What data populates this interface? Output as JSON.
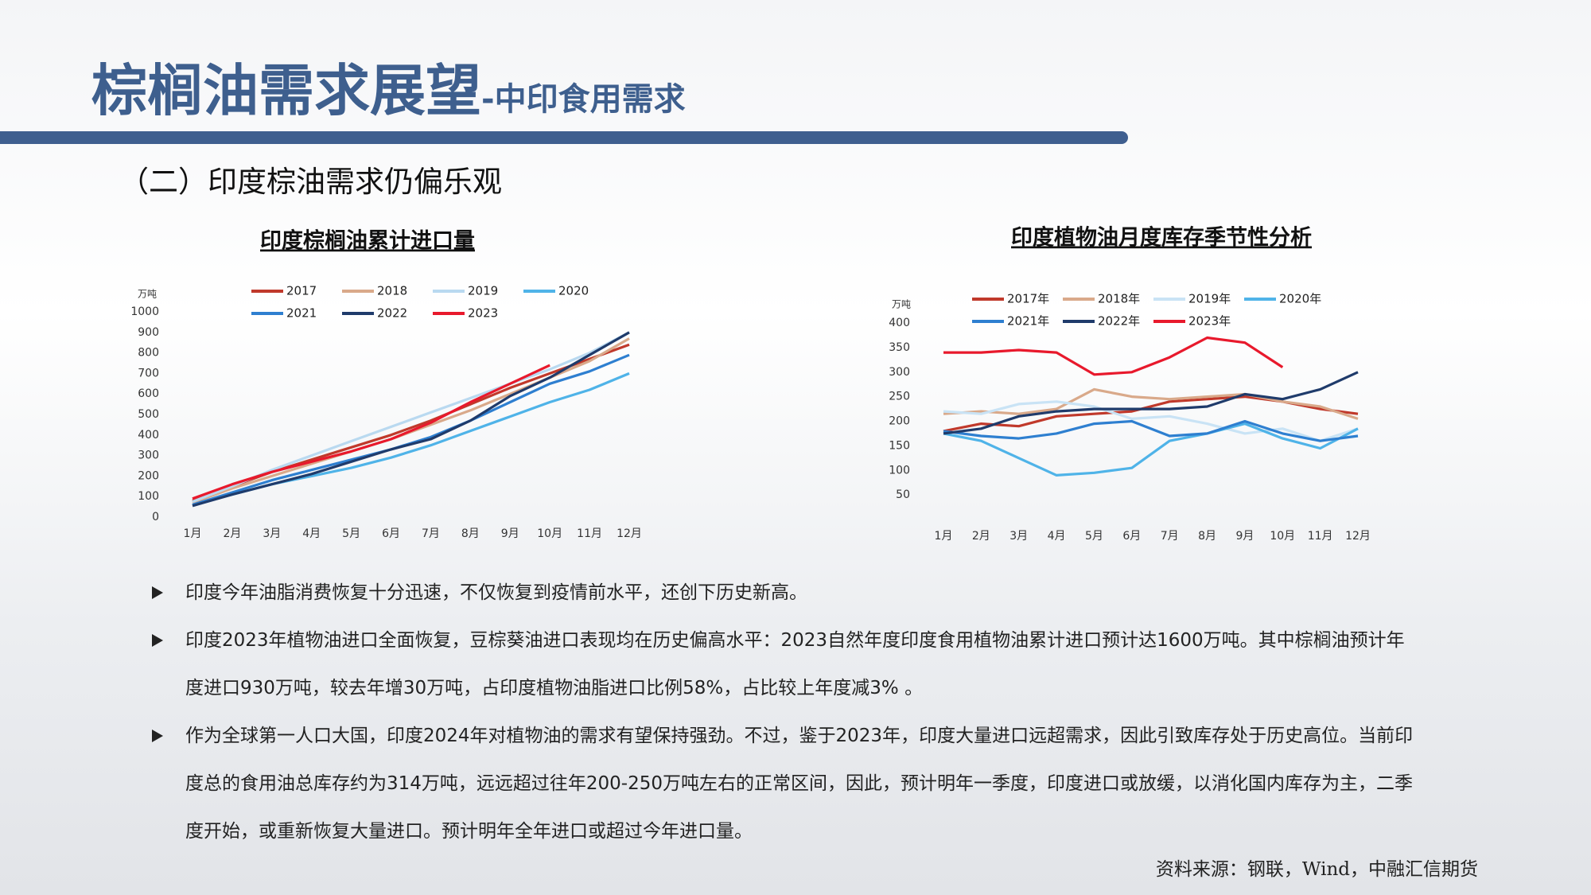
{
  "header": {
    "title": "棕榈油需求展望",
    "subtitle": "-中印食用需求"
  },
  "section": "（二）印度棕油需求仍偏乐观",
  "chart_data": [
    {
      "type": "line",
      "title": "印度棕榈油累计进口量",
      "y_label": "万吨",
      "categories": [
        "1月",
        "2月",
        "3月",
        "4月",
        "5月",
        "6月",
        "7月",
        "8月",
        "9月",
        "10月",
        "11月",
        "12月"
      ],
      "ylim": [
        0,
        1000
      ],
      "yticks": [
        0,
        100,
        200,
        300,
        400,
        500,
        600,
        700,
        800,
        900,
        1000
      ],
      "grid": false,
      "series": [
        {
          "name": "2017",
          "color": "#c0392b",
          "values": [
            80,
            150,
            220,
            280,
            340,
            400,
            470,
            550,
            630,
            700,
            770,
            840
          ]
        },
        {
          "name": "2018",
          "color": "#d9a98a",
          "values": [
            70,
            140,
            200,
            260,
            320,
            380,
            450,
            520,
            600,
            680,
            760,
            870
          ]
        },
        {
          "name": "2019",
          "color": "#b9d9f0",
          "values": [
            75,
            150,
            230,
            300,
            370,
            440,
            510,
            580,
            650,
            720,
            800,
            900
          ]
        },
        {
          "name": "2020",
          "color": "#4fb3e8",
          "values": [
            60,
            110,
            160,
            200,
            240,
            290,
            350,
            420,
            490,
            560,
            620,
            700
          ]
        },
        {
          "name": "2021",
          "color": "#2e7fd0",
          "values": [
            60,
            120,
            180,
            230,
            280,
            330,
            390,
            470,
            560,
            650,
            710,
            790
          ]
        },
        {
          "name": "2022",
          "color": "#1f3b6b",
          "values": [
            55,
            110,
            160,
            210,
            270,
            330,
            380,
            470,
            590,
            680,
            790,
            900
          ]
        },
        {
          "name": "2023",
          "color": "#e8192c",
          "values": [
            90,
            160,
            220,
            270,
            320,
            380,
            460,
            560,
            650,
            740,
            null,
            null
          ]
        }
      ]
    },
    {
      "type": "line",
      "title": "印度植物油月度库存季节性分析",
      "y_label": "万吨",
      "categories": [
        "1月",
        "2月",
        "3月",
        "4月",
        "5月",
        "6月",
        "7月",
        "8月",
        "9月",
        "10月",
        "11月",
        "12月"
      ],
      "ylim": [
        0,
        400
      ],
      "yticks": [
        50,
        100,
        150,
        200,
        250,
        300,
        350,
        400
      ],
      "grid": false,
      "series": [
        {
          "name": "2017年",
          "color": "#c0392b",
          "values": [
            180,
            195,
            190,
            210,
            215,
            220,
            240,
            245,
            250,
            240,
            225,
            215
          ]
        },
        {
          "name": "2018年",
          "color": "#d9a98a",
          "values": [
            215,
            220,
            215,
            225,
            265,
            250,
            245,
            250,
            255,
            240,
            230,
            205
          ]
        },
        {
          "name": "2019年",
          "color": "#c9e3f5",
          "values": [
            220,
            215,
            235,
            240,
            230,
            205,
            210,
            195,
            175,
            185,
            160,
            185
          ]
        },
        {
          "name": "2020年",
          "color": "#4fb3e8",
          "values": [
            175,
            160,
            125,
            90,
            95,
            105,
            160,
            175,
            195,
            165,
            145,
            185
          ]
        },
        {
          "name": "2021年",
          "color": "#2e7fd0",
          "values": [
            180,
            170,
            165,
            175,
            195,
            200,
            170,
            175,
            200,
            175,
            160,
            170
          ]
        },
        {
          "name": "2022年",
          "color": "#1f3b6b",
          "values": [
            175,
            185,
            210,
            220,
            225,
            225,
            225,
            230,
            255,
            245,
            265,
            300
          ]
        },
        {
          "name": "2023年",
          "color": "#e8192c",
          "values": [
            340,
            340,
            345,
            340,
            295,
            300,
            330,
            370,
            360,
            310,
            null,
            null
          ]
        }
      ]
    }
  ],
  "bullets": [
    "印度今年油脂消费恢复十分迅速，不仅恢复到疫情前水平，还创下历史新高。",
    "印度2023年植物油进口全面恢复，豆棕葵油进口表现均在历史偏高水平：2023自然年度印度食用植物油累计进口预计达1600万吨。其中棕榈油预计年度进口930万吨，较去年增30万吨，占印度植物油脂进口比例58%，占比较上年度减3% 。",
    "作为全球第一人口大国，印度2024年对植物油的需求有望保持强劲。不过，鉴于2023年，印度大量进口远超需求，因此引致库存处于历史高位。当前印度总的食用油总库存约为314万吨，远远超过往年200-250万吨左右的正常区间，因此，预计明年一季度，印度进口或放缓，以消化国内库存为主，二季度开始，或重新恢复大量进口。预计明年全年进口或超过今年进口量。"
  ],
  "source": "资料来源：钢联，Wind，中融汇信期货"
}
